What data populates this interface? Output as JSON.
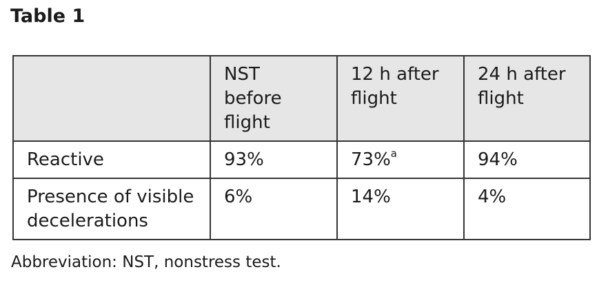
{
  "title": "Table 1",
  "table": {
    "header": [
      "",
      "NST\nbefore\nflight",
      "12 h after\nflight",
      "24 h after\nflight"
    ],
    "rows": [
      [
        "Reactive",
        "93%",
        {
          "text": "73%",
          "sup": "a"
        },
        "94%"
      ],
      [
        "Presence of visible\ndecelerations",
        "6%",
        "14%",
        "4%"
      ]
    ]
  },
  "footnote": "Abbreviation: NST, nonstress test."
}
